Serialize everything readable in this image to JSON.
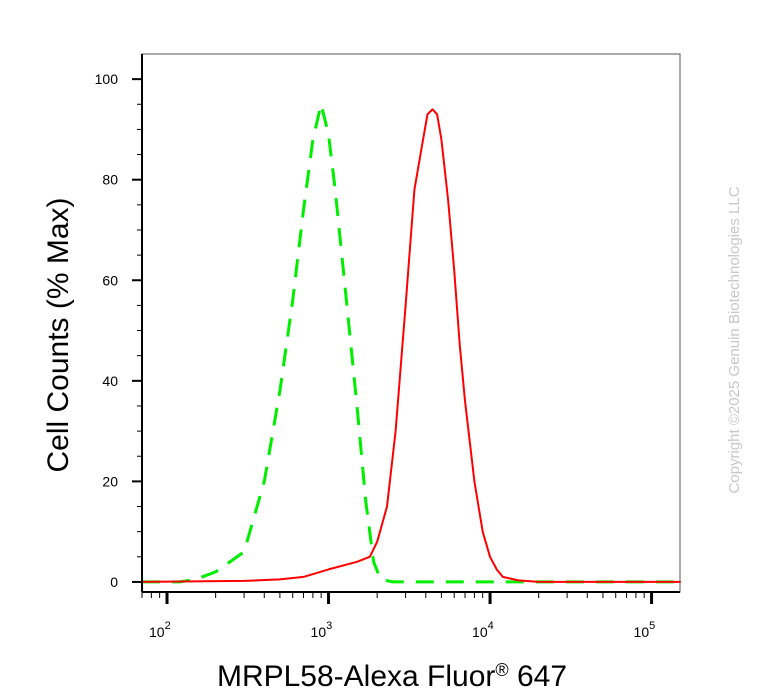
{
  "chart_data": {
    "type": "line",
    "xlabel": "MRPL58-Alexa Fluor® 647",
    "xlabel_parts": {
      "base": "MRPL58-Alexa Fluor",
      "sup": "®",
      "tail": " 647"
    },
    "ylabel": "Cell Counts (% Max)",
    "x_scale": "log",
    "xlim": [
      70,
      150000
    ],
    "ylim": [
      -2,
      105
    ],
    "y_ticks": [
      0,
      20,
      40,
      60,
      80,
      100
    ],
    "y_tick_labels": [
      "0",
      "20",
      "40",
      "60",
      "80",
      "100"
    ],
    "x_ticks": [
      100,
      1000,
      10000,
      100000
    ],
    "x_tick_labels": [
      {
        "base": "10",
        "exp": "2"
      },
      {
        "base": "10",
        "exp": "3"
      },
      {
        "base": "10",
        "exp": "4"
      },
      {
        "base": "10",
        "exp": "5"
      }
    ],
    "grid": false,
    "series": [
      {
        "style": "dashed",
        "color": "#00ee00",
        "x": [
          70,
          120,
          150,
          200,
          300,
          400,
          500,
          600,
          700,
          800,
          900,
          1000,
          1100,
          1300,
          1500,
          1700,
          1900,
          2100,
          2500,
          3000,
          5000,
          10000,
          150000
        ],
        "y": [
          0,
          0,
          0.5,
          2,
          6,
          20,
          38,
          56,
          74,
          88,
          95,
          89,
          78,
          55,
          35,
          16,
          4,
          0.5,
          0,
          0,
          0,
          0,
          0
        ]
      },
      {
        "style": "solid",
        "color": "#ff0000",
        "x": [
          70,
          300,
          500,
          700,
          1000,
          1500,
          1800,
          2000,
          2300,
          2600,
          3000,
          3400,
          3800,
          4100,
          4400,
          4700,
          5000,
          5500,
          6000,
          6500,
          7000,
          8000,
          9000,
          10000,
          11000,
          12000,
          15000,
          20000,
          150000
        ],
        "y": [
          0,
          0.2,
          0.5,
          1,
          2.5,
          4,
          5,
          8,
          15,
          30,
          55,
          78,
          87,
          93,
          94,
          93,
          88,
          76,
          62,
          47,
          36,
          20,
          10,
          5,
          2.5,
          1,
          0.3,
          0,
          0
        ]
      }
    ]
  },
  "watermark": "Copyright ©2025 Genuin Biotechnologies LLC"
}
